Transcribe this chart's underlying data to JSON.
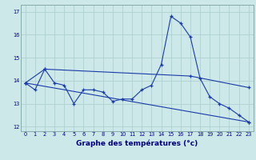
{
  "xlabel": "Graphe des températures (°c)",
  "background_color": "#cce8e8",
  "grid_color": "#aacccc",
  "line_color": "#1a3aaa",
  "ylim": [
    11.8,
    17.3
  ],
  "xlim": [
    -0.5,
    23.5
  ],
  "yticks": [
    12,
    13,
    14,
    15,
    16,
    17
  ],
  "xticks": [
    0,
    1,
    2,
    3,
    4,
    5,
    6,
    7,
    8,
    9,
    10,
    11,
    12,
    13,
    14,
    15,
    16,
    17,
    18,
    19,
    20,
    21,
    22,
    23
  ],
  "line1_x": [
    0,
    1,
    2,
    3,
    4,
    5,
    6,
    7,
    8,
    9,
    10,
    11,
    12,
    13,
    14,
    15,
    16,
    17,
    18,
    19,
    20,
    21,
    22,
    23
  ],
  "line1_y": [
    13.9,
    13.6,
    14.5,
    13.9,
    13.8,
    13.0,
    13.6,
    13.6,
    13.5,
    13.1,
    13.2,
    13.2,
    13.6,
    13.8,
    14.7,
    16.8,
    16.5,
    15.9,
    14.1,
    13.3,
    13.0,
    12.8,
    12.5,
    12.2
  ],
  "line2_x": [
    0,
    2,
    17,
    23
  ],
  "line2_y": [
    13.9,
    14.5,
    14.2,
    13.7
  ],
  "line3_x": [
    0,
    23
  ],
  "line3_y": [
    13.9,
    12.2
  ],
  "xlabel_fontsize": 6.5,
  "tick_fontsize": 4.8
}
